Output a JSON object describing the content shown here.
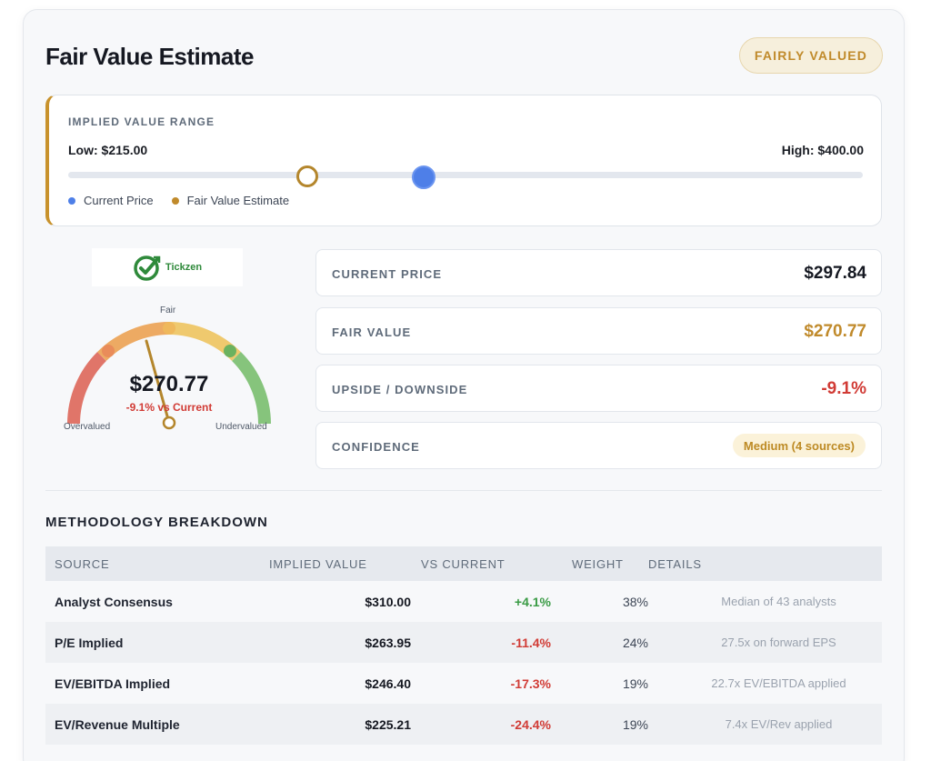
{
  "header": {
    "title": "Fair Value Estimate",
    "status_badge": "FAIRLY VALUED"
  },
  "range": {
    "label": "IMPLIED VALUE RANGE",
    "low_label": "Low: $215.00",
    "high_label": "High: $400.00",
    "low": 215.0,
    "high": 400.0,
    "fair_value": 270.77,
    "current_price": 297.84,
    "legend_current": "Current Price",
    "legend_fair": "Fair Value Estimate"
  },
  "logo": {
    "text": "Tickzen"
  },
  "gauge": {
    "value": "$270.77",
    "sub": "-9.1% vs Current",
    "label_top": "Fair",
    "label_left": "Overvalued",
    "label_right": "Undervalued"
  },
  "metrics": [
    {
      "label": "CURRENT PRICE",
      "value": "$297.84",
      "color": "#151821"
    },
    {
      "label": "FAIR VALUE",
      "value": "$270.77",
      "color": "#c08a2b"
    },
    {
      "label": "UPSIDE / DOWNSIDE",
      "value": "-9.1%",
      "color": "#d13b35"
    },
    {
      "label": "CONFIDENCE",
      "value": "Medium (4 sources)",
      "color": "#bd8a24"
    }
  ],
  "methodology": {
    "title": "METHODOLOGY BREAKDOWN",
    "columns": [
      "SOURCE",
      "IMPLIED VALUE",
      "VS CURRENT",
      "WEIGHT",
      "DETAILS"
    ],
    "rows": [
      {
        "source": "Analyst Consensus",
        "implied": "$310.00",
        "vs": "+4.1%",
        "weight": "38%",
        "details": "Median of 43 analysts"
      },
      {
        "source": "P/E Implied",
        "implied": "$263.95",
        "vs": "-11.4%",
        "weight": "24%",
        "details": "27.5x on forward EPS"
      },
      {
        "source": "EV/EBITDA Implied",
        "implied": "$246.40",
        "vs": "-17.3%",
        "weight": "19%",
        "details": "22.7x EV/EBITDA applied"
      },
      {
        "source": "EV/Revenue Multiple",
        "implied": "$225.21",
        "vs": "-24.4%",
        "weight": "19%",
        "details": "7.4x EV/Rev applied"
      }
    ]
  },
  "colors": {
    "accent": "#c8922c",
    "current": "#4e7fe8",
    "positive": "#3a9b45",
    "negative": "#d13b35"
  }
}
